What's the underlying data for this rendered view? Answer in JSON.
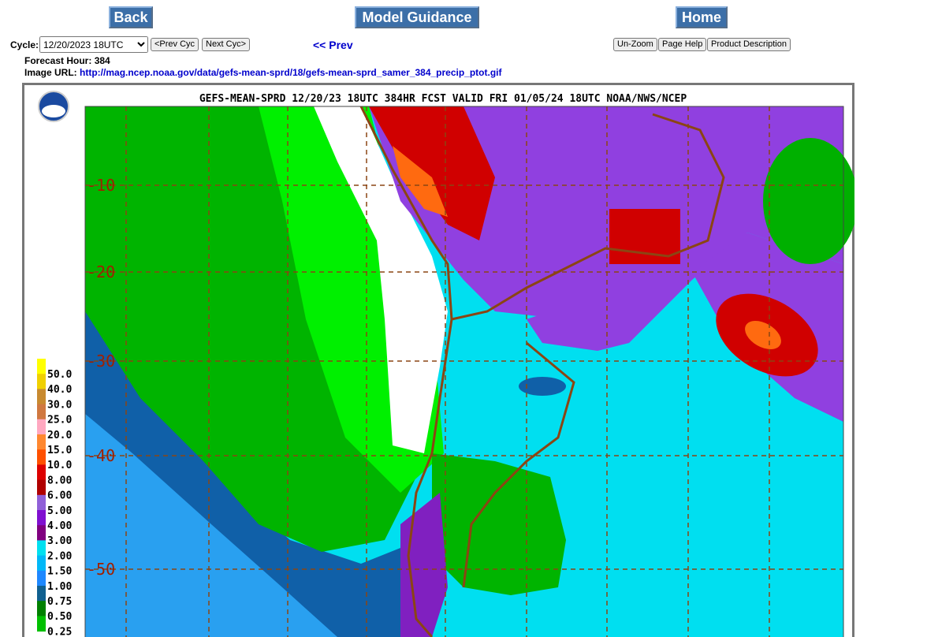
{
  "nav": {
    "back": "Back",
    "model_guidance": "Model Guidance",
    "home": "Home"
  },
  "controls": {
    "cycle_label": "Cycle:",
    "cycle": "12/20/2023 18UTC",
    "prev_cycle": "<Prev Cyc",
    "next_cycle": "Next Cyc>",
    "prev": "<< Prev",
    "unzoom": "Un-Zoom",
    "page_help": "Page Help",
    "product_description": "Product Description"
  },
  "info": {
    "forecast_hour_label": "Forecast Hour:",
    "forecast_hour": 384,
    "image_url_label": "Image URL:",
    "image_url": "http://mag.ncep.noaa.gov/data/gefs-mean-sprd/18/gefs-mean-sprd_samer_384_precip_ptot.gif"
  },
  "map": {
    "title": "GEFS-MEAN-SPRD 12/20/23 18UTC 384HR FCST VALID FRI 01/05/24 18UTC NOAA/NWS/NCEP",
    "latitude_labels": [
      "-10",
      "-20",
      "-30",
      "-40",
      "-50"
    ],
    "legend": {
      "labels": [
        "50.0",
        "40.0",
        "30.0",
        "25.0",
        "20.0",
        "15.0",
        "10.0",
        "8.00",
        "6.00",
        "5.00",
        "4.00",
        "3.00",
        "2.00",
        "1.50",
        "1.00",
        "0.75",
        "0.50",
        "0.25"
      ],
      "colors": [
        "#ffff00",
        "#f0d000",
        "#c88a30",
        "#d07840",
        "#ffa8c0",
        "#ff8830",
        "#ff5000",
        "#dd0000",
        "#b00000",
        "#9060d8",
        "#8010d0",
        "#800080",
        "#00e0f0",
        "#00b8f8",
        "#1e88ff",
        "#106090",
        "#008000",
        "#00c000"
      ]
    }
  }
}
